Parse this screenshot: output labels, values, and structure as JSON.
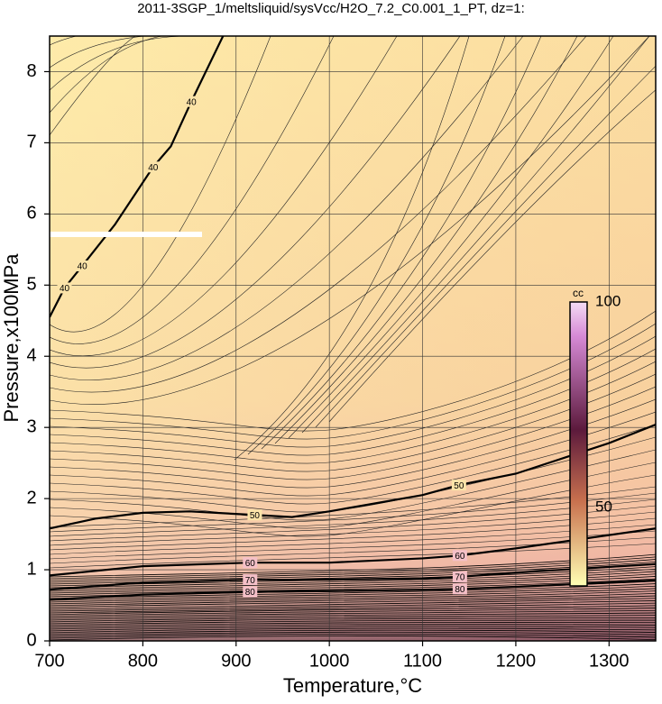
{
  "chart_data": {
    "type": "contour",
    "title": "2011-3SGP_1/meltsliquid/sysVcc/H2O_7.2_C0.001_1_PT, dz=1:",
    "x_label": "Temperature,°C",
    "y_label": "Pressure,x100MPa",
    "xlim": [
      700,
      1350
    ],
    "ylim": [
      0,
      8.5
    ],
    "xticks": [
      700,
      800,
      900,
      1000,
      1100,
      1200,
      1300
    ],
    "yticks": [
      0,
      1,
      2,
      3,
      4,
      5,
      6,
      7,
      8
    ],
    "grid": true,
    "contours": [
      {
        "level": 40,
        "x": [
          700,
          716,
          735,
          770,
          811,
          830,
          852,
          886
        ],
        "y": [
          4.55,
          4.96,
          5.27,
          5.85,
          6.66,
          6.95,
          7.58,
          8.5
        ]
      },
      {
        "level": 50,
        "x": [
          700,
          750,
          800,
          850,
          920,
          960,
          1000,
          1100,
          1139,
          1200,
          1300,
          1350
        ],
        "y": [
          1.58,
          1.72,
          1.8,
          1.82,
          1.77,
          1.74,
          1.82,
          2.05,
          2.19,
          2.35,
          2.78,
          3.04
        ]
      },
      {
        "level": 60,
        "x": [
          700,
          800,
          915,
          1000,
          1100,
          1140,
          1200,
          1350
        ],
        "y": [
          0.92,
          1.05,
          1.1,
          1.1,
          1.16,
          1.2,
          1.3,
          1.58
        ]
      },
      {
        "level": 70,
        "x": [
          700,
          800,
          915,
          1000,
          1100,
          1140,
          1200,
          1350
        ],
        "y": [
          0.72,
          0.82,
          0.86,
          0.86,
          0.88,
          0.9,
          0.96,
          1.08
        ]
      },
      {
        "level": 80,
        "x": [
          700,
          800,
          915,
          1000,
          1100,
          1140,
          1200,
          1350
        ],
        "y": [
          0.58,
          0.65,
          0.69,
          0.7,
          0.72,
          0.73,
          0.76,
          0.85
        ]
      }
    ],
    "colorbar": {
      "label": "cc",
      "lim": [
        31,
        100
      ],
      "ticks": [
        50,
        100
      ]
    }
  }
}
